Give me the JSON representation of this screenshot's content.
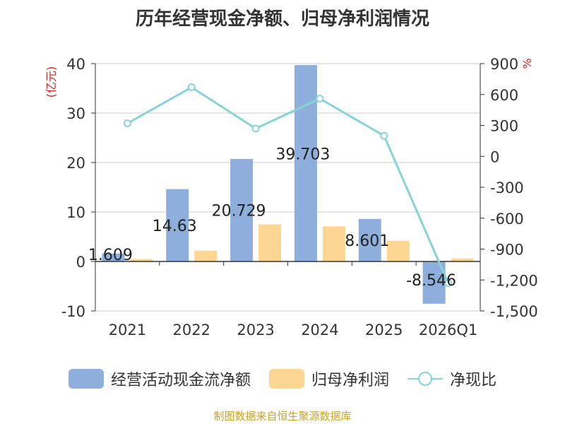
{
  "chart_data": {
    "type": "bar",
    "title": "历年经营现金净额、归母净利润情况",
    "left_unit": "(亿元)",
    "right_unit": "%",
    "categories": [
      "2021",
      "2022",
      "2023",
      "2024",
      "2025",
      "2026Q1"
    ],
    "series": [
      {
        "name": "经营活动现金流净额",
        "kind": "bar",
        "axis": "left",
        "color": "#8eaedb",
        "values": [
          1.609,
          14.63,
          20.729,
          39.703,
          8.601,
          -8.546
        ],
        "labels": [
          "1.609",
          "14.63",
          "20.729",
          "39.703",
          "8.601",
          "-8.546"
        ]
      },
      {
        "name": "归母净利润",
        "kind": "bar",
        "axis": "left",
        "color": "#fdd694",
        "values": [
          0.5,
          2.2,
          7.5,
          7.1,
          4.2,
          0.6
        ]
      },
      {
        "name": "净现比",
        "kind": "line",
        "axis": "right",
        "color": "#86d3d8",
        "values": [
          320,
          670,
          270,
          560,
          200,
          -1230
        ]
      }
    ],
    "left_axis": {
      "min": -10,
      "max": 40,
      "ticks": [
        "-10",
        "0",
        "10",
        "20",
        "30",
        "40"
      ],
      "tick_values": [
        -10,
        0,
        10,
        20,
        30,
        40
      ]
    },
    "right_axis": {
      "min": -1500,
      "max": 900,
      "ticks": [
        "-1,500",
        "-1,200",
        "-900",
        "-600",
        "-300",
        "0",
        "300",
        "600",
        "900"
      ],
      "tick_values": [
        -1500,
        -1200,
        -900,
        -600,
        -300,
        0,
        300,
        600,
        900
      ]
    },
    "grid": true,
    "legend_position": "bottom"
  },
  "legend": {
    "items": [
      {
        "label": "经营活动现金流净额",
        "color": "#8eaedb",
        "kind": "bar"
      },
      {
        "label": "归母净利润",
        "color": "#fdd694",
        "kind": "bar"
      },
      {
        "label": "净现比",
        "color": "#86d3d8",
        "kind": "line"
      }
    ]
  },
  "source": "制图数据来自恒生聚源数据库"
}
